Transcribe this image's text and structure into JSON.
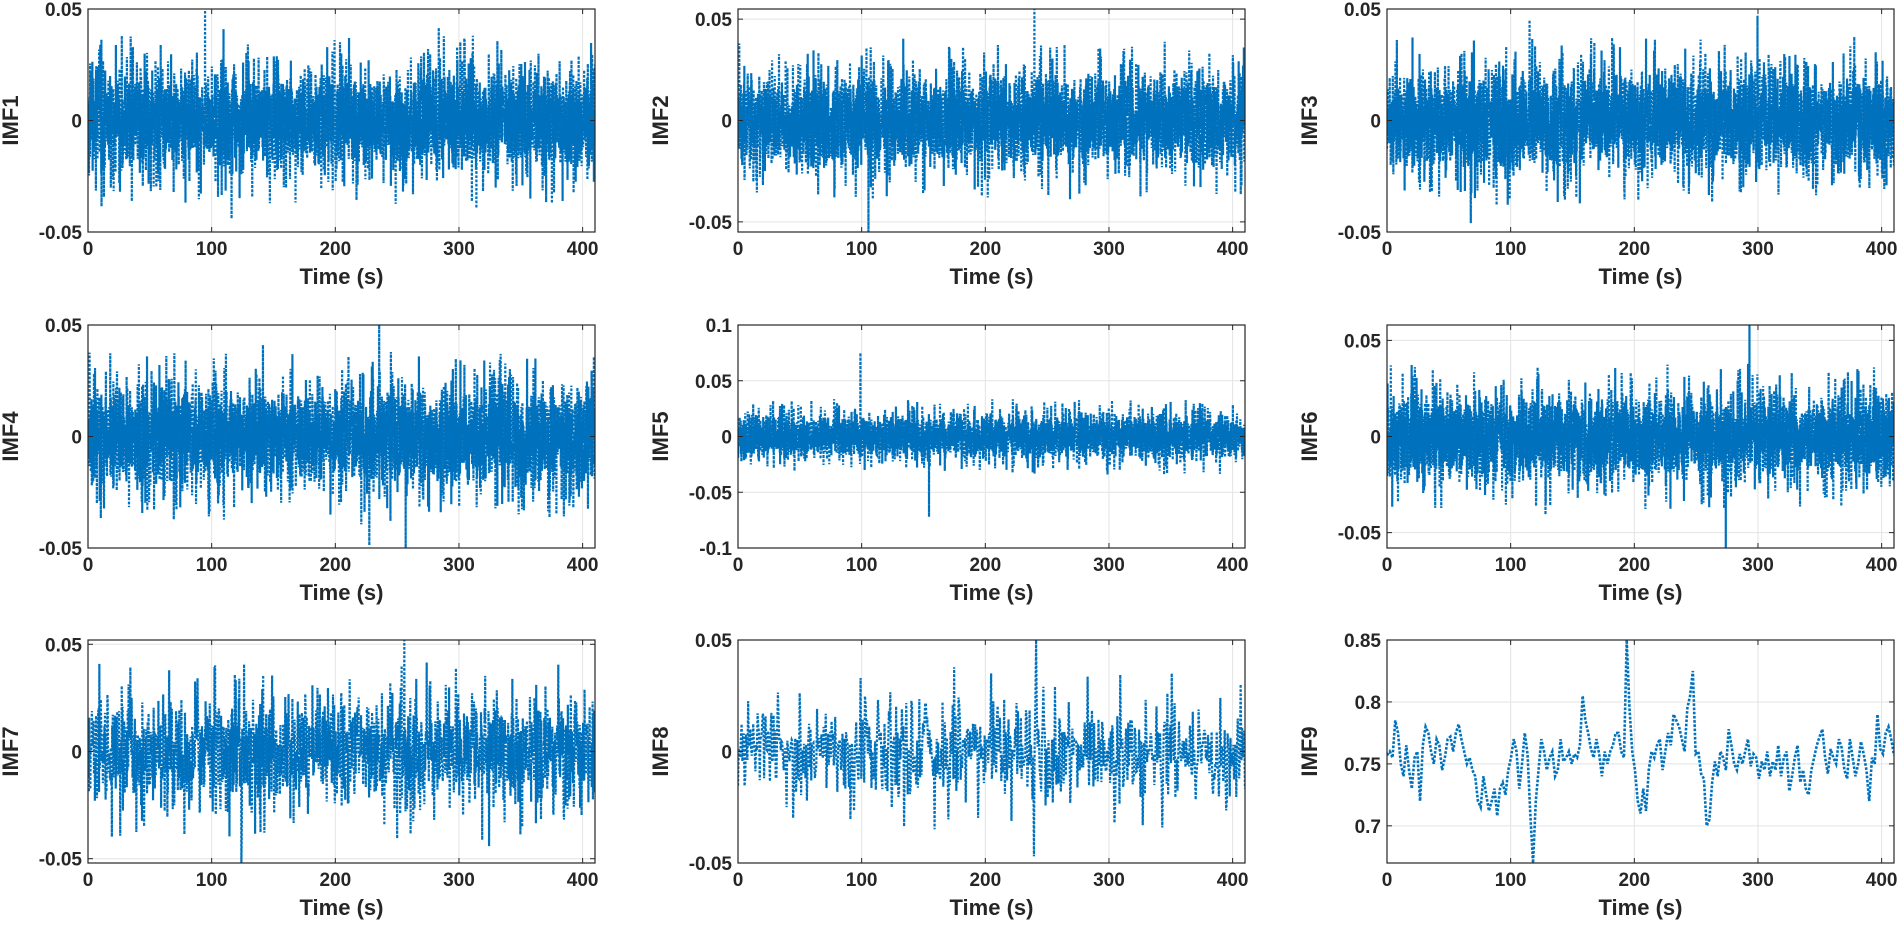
{
  "figure": {
    "xlabel": "Time (s)",
    "series_color": "#0072BD",
    "line_style": "dotted"
  },
  "chart_data": [
    {
      "type": "line",
      "ylabel": "IMF1",
      "xlim": [
        0,
        410
      ],
      "ylim": [
        -0.05,
        0.05
      ],
      "xticks": [
        "0",
        "100",
        "200",
        "300",
        "400"
      ],
      "yticks": [
        "-0.05",
        "0",
        "0.05"
      ],
      "ytick_values": [
        -0.05,
        0,
        0.05
      ],
      "grid": true,
      "amplitude": 0.02,
      "peak_max": 0.041,
      "peak_min": -0.044,
      "mean": 0,
      "density": "dense"
    },
    {
      "type": "line",
      "ylabel": "IMF2",
      "xlim": [
        0,
        410
      ],
      "ylim": [
        -0.055,
        0.055
      ],
      "xticks": [
        "0",
        "100",
        "200",
        "300",
        "400"
      ],
      "yticks": [
        "-0.05",
        "0",
        "0.05"
      ],
      "ytick_values": [
        -0.05,
        0,
        0.05
      ],
      "grid": true,
      "amplitude": 0.02,
      "peak_max": 0.055,
      "peak_min": -0.055,
      "mean": 0,
      "density": "dense"
    },
    {
      "type": "line",
      "ylabel": "IMF3",
      "xlim": [
        0,
        410
      ],
      "ylim": [
        -0.05,
        0.05
      ],
      "xticks": [
        "0",
        "100",
        "200",
        "300",
        "400"
      ],
      "yticks": [
        "-0.05",
        "0",
        "0.05"
      ],
      "ytick_values": [
        -0.05,
        0,
        0.05
      ],
      "grid": true,
      "amplitude": 0.02,
      "peak_max": 0.047,
      "peak_min": -0.046,
      "mean": 0,
      "density": "dense"
    },
    {
      "type": "line",
      "ylabel": "IMF4",
      "xlim": [
        0,
        410
      ],
      "ylim": [
        -0.05,
        0.05
      ],
      "xticks": [
        "0",
        "100",
        "200",
        "300",
        "400"
      ],
      "yticks": [
        "-0.05",
        "0",
        "0.05"
      ],
      "ytick_values": [
        -0.05,
        0,
        0.05
      ],
      "grid": true,
      "amplitude": 0.02,
      "peak_max": 0.05,
      "peak_min": -0.05,
      "mean": 0,
      "density": "dense"
    },
    {
      "type": "line",
      "ylabel": "IMF5",
      "xlim": [
        0,
        410
      ],
      "ylim": [
        -0.1,
        0.1
      ],
      "xticks": [
        "0",
        "100",
        "200",
        "300",
        "400"
      ],
      "yticks": [
        "-0.1",
        "-0.05",
        "0",
        "0.05",
        "0.1"
      ],
      "ytick_values": [
        -0.1,
        -0.05,
        0,
        0.05,
        0.1
      ],
      "grid": true,
      "amplitude": 0.018,
      "peak_max": 0.075,
      "peak_min": -0.072,
      "mean": 0,
      "density": "dense"
    },
    {
      "type": "line",
      "ylabel": "IMF6",
      "xlim": [
        0,
        410
      ],
      "ylim": [
        -0.058,
        0.058
      ],
      "xticks": [
        "0",
        "100",
        "200",
        "300",
        "400"
      ],
      "yticks": [
        "-0.05",
        "0",
        "0.05"
      ],
      "ytick_values": [
        -0.05,
        0,
        0.05
      ],
      "grid": true,
      "amplitude": 0.02,
      "peak_max": 0.058,
      "peak_min": -0.058,
      "mean": 0,
      "density": "dense"
    },
    {
      "type": "line",
      "ylabel": "IMF7",
      "xlim": [
        0,
        410
      ],
      "ylim": [
        -0.052,
        0.052
      ],
      "xticks": [
        "0",
        "100",
        "200",
        "300",
        "400"
      ],
      "yticks": [
        "-0.05",
        "0",
        "0.05"
      ],
      "ytick_values": [
        -0.05,
        0,
        0.05
      ],
      "grid": true,
      "amplitude": 0.022,
      "peak_max": 0.052,
      "peak_min": -0.052,
      "mean": 0,
      "density": "medium"
    },
    {
      "type": "line",
      "ylabel": "IMF8",
      "xlim": [
        0,
        410
      ],
      "ylim": [
        -0.05,
        0.05
      ],
      "xticks": [
        "0",
        "100",
        "200",
        "300",
        "400"
      ],
      "yticks": [
        "-0.05",
        "0",
        "0.05"
      ],
      "ytick_values": [
        -0.05,
        0,
        0.05
      ],
      "grid": true,
      "amplitude": 0.02,
      "peak_max": 0.05,
      "peak_min": -0.047,
      "mean": 0,
      "density": "sparse"
    },
    {
      "type": "line",
      "ylabel": "IMF9",
      "xlim": [
        0,
        410
      ],
      "ylim": [
        0.67,
        0.85
      ],
      "xticks": [
        "0",
        "100",
        "200",
        "300",
        "400"
      ],
      "yticks": [
        "0.7",
        "0.75",
        "0.8",
        "0.85"
      ],
      "ytick_values": [
        0.7,
        0.75,
        0.8,
        0.85
      ],
      "grid": true,
      "amplitude": 0.015,
      "peak_max": 0.85,
      "peak_min": 0.67,
      "mean": 0.755,
      "density": "trend",
      "values": [
        0.757,
        0.76,
        0.755,
        0.785,
        0.775,
        0.75,
        0.74,
        0.765,
        0.745,
        0.73,
        0.755,
        0.76,
        0.72,
        0.765,
        0.78,
        0.775,
        0.76,
        0.75,
        0.77,
        0.765,
        0.745,
        0.755,
        0.77,
        0.772,
        0.76,
        0.775,
        0.782,
        0.77,
        0.76,
        0.75,
        0.755,
        0.745,
        0.74,
        0.72,
        0.715,
        0.74,
        0.725,
        0.712,
        0.72,
        0.73,
        0.708,
        0.73,
        0.735,
        0.725,
        0.745,
        0.755,
        0.77,
        0.76,
        0.73,
        0.75,
        0.775,
        0.758,
        0.71,
        0.67,
        0.72,
        0.745,
        0.77,
        0.76,
        0.745,
        0.755,
        0.76,
        0.74,
        0.745,
        0.77,
        0.752,
        0.755,
        0.76,
        0.75,
        0.758,
        0.755,
        0.765,
        0.805,
        0.785,
        0.775,
        0.762,
        0.755,
        0.77,
        0.758,
        0.74,
        0.76,
        0.75,
        0.76,
        0.765,
        0.775,
        0.775,
        0.76,
        0.755,
        0.85,
        0.795,
        0.76,
        0.745,
        0.72,
        0.71,
        0.73,
        0.712,
        0.745,
        0.76,
        0.755,
        0.765,
        0.77,
        0.745,
        0.76,
        0.775,
        0.765,
        0.79,
        0.785,
        0.78,
        0.77,
        0.76,
        0.795,
        0.805,
        0.825,
        0.758,
        0.76,
        0.742,
        0.738,
        0.7,
        0.705,
        0.735,
        0.752,
        0.74,
        0.76,
        0.755,
        0.745,
        0.778,
        0.765,
        0.75,
        0.745,
        0.758,
        0.75,
        0.76,
        0.77,
        0.748,
        0.758,
        0.755,
        0.738,
        0.752,
        0.745,
        0.76,
        0.74,
        0.752,
        0.745,
        0.765,
        0.74,
        0.755,
        0.76,
        0.728,
        0.74,
        0.755,
        0.765,
        0.735,
        0.745,
        0.73,
        0.725,
        0.745,
        0.755,
        0.765,
        0.772,
        0.778,
        0.755,
        0.742,
        0.762,
        0.755,
        0.75,
        0.77,
        0.763,
        0.745,
        0.738,
        0.77,
        0.755,
        0.74,
        0.75,
        0.768,
        0.758,
        0.745,
        0.72,
        0.755,
        0.75,
        0.79,
        0.762,
        0.758,
        0.775,
        0.78,
        0.77,
        0.757
      ]
    }
  ]
}
